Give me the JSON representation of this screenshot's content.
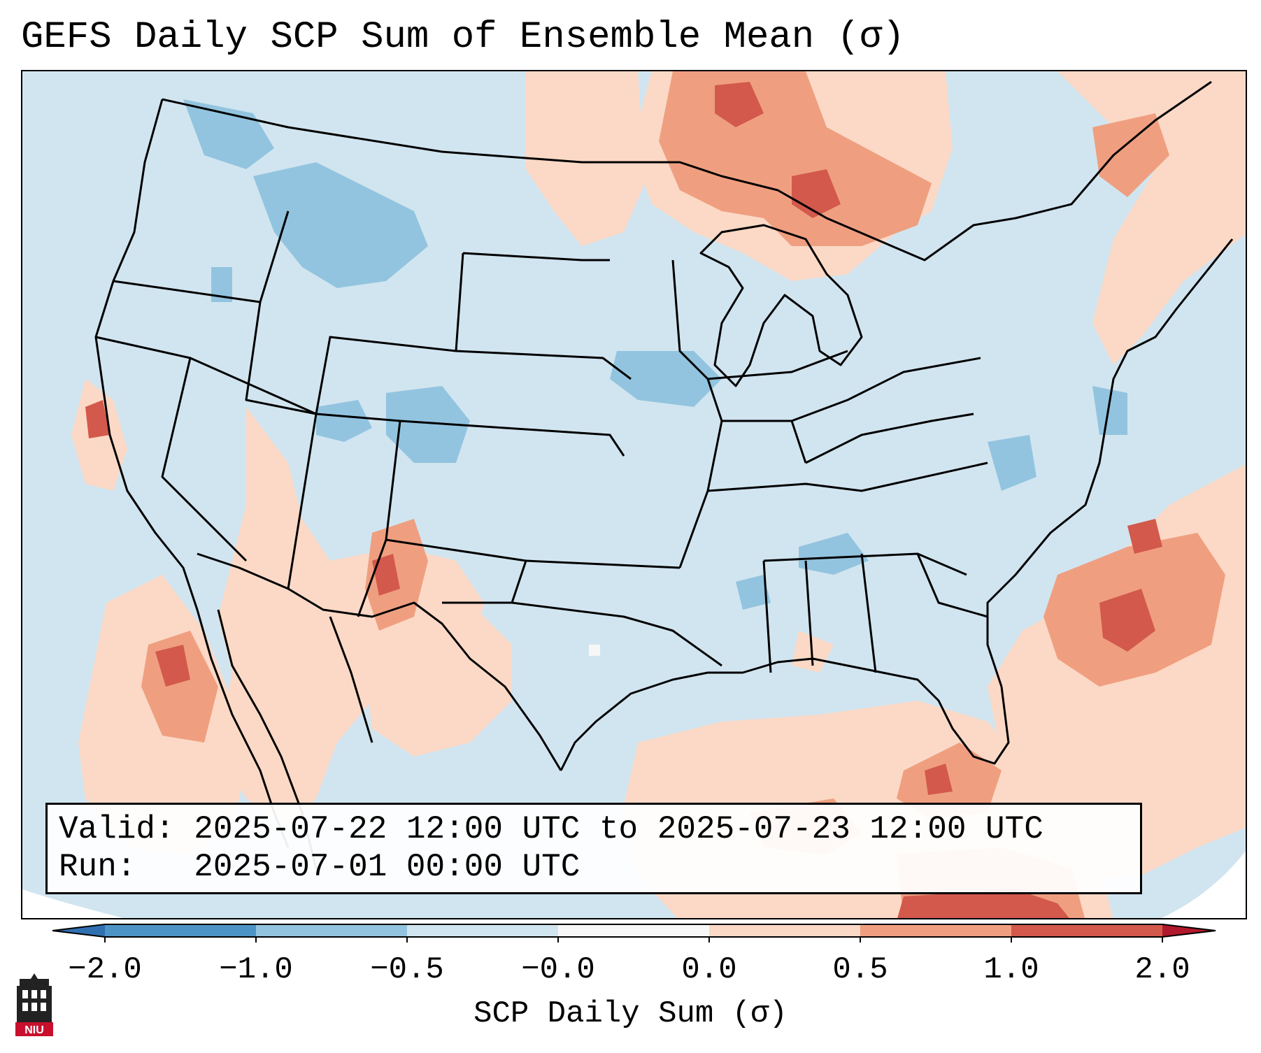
{
  "title": "GEFS Daily SCP Sum of Ensemble Mean (σ)",
  "info": {
    "valid_label": "Valid:",
    "valid_value": "2025-07-22 12:00 UTC to 2025-07-23 12:00 UTC",
    "run_label": "Run:",
    "run_value": "2025-07-01 00:00 UTC"
  },
  "colorbar": {
    "label": "SCP Daily Sum (σ)",
    "ticks": [
      "−2.0",
      "−1.0",
      "−0.5",
      "−0.0",
      "0.0",
      "0.5",
      "1.0",
      "2.0"
    ],
    "bins": [
      {
        "range": "-2.0 to -1.0",
        "color": "#4d94c6"
      },
      {
        "range": "-1.0 to -0.5",
        "color": "#92c4df"
      },
      {
        "range": "-0.5 to -0.0",
        "color": "#d1e5f0"
      },
      {
        "range": "-0.0 to 0.0",
        "color": "#f7f7f7"
      },
      {
        "range": "0.0 to 0.5",
        "color": "#fbd9c6"
      },
      {
        "range": "0.5 to 1.0",
        "color": "#ef9f80"
      },
      {
        "range": "1.0 to 2.0",
        "color": "#d3594c"
      }
    ],
    "under_color": "#2f70b1",
    "over_color": "#b2182b"
  },
  "logo": {
    "text": "NIU",
    "icon": "university-tower-icon"
  },
  "map": {
    "region": "Continental United States",
    "background_color": "#d1e5f0",
    "border_color": "#000000"
  }
}
